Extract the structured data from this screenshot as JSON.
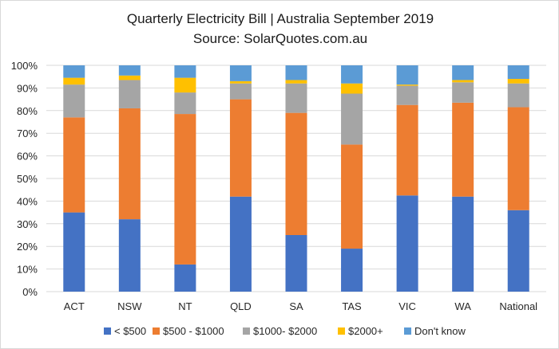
{
  "chart_data": {
    "type": "bar",
    "stacked": true,
    "title": "Quarterly Electricity Bill | Australia September 2019",
    "subtitle": "Source: SolarQuotes.com.au",
    "xlabel": "",
    "ylabel": "",
    "ylim": [
      0,
      100
    ],
    "y_unit": "%",
    "y_ticks": [
      "0%",
      "10%",
      "20%",
      "30%",
      "40%",
      "50%",
      "60%",
      "70%",
      "80%",
      "90%",
      "100%"
    ],
    "grid": true,
    "legend_position": "bottom",
    "categories": [
      "ACT",
      "NSW",
      "NT",
      "QLD",
      "SA",
      "TAS",
      "VIC",
      "WA",
      "National"
    ],
    "series": [
      {
        "name": "< $500",
        "color": "#4472C4",
        "values": [
          35,
          32,
          12,
          42,
          25,
          19,
          42.5,
          42,
          36
        ]
      },
      {
        "name": "$500 - $1000",
        "color": "#ED7D31",
        "values": [
          42,
          49,
          66.5,
          43,
          54,
          46,
          40,
          41.5,
          45.5
        ]
      },
      {
        "name": "$1000- $2000",
        "color": "#A5A5A5",
        "values": [
          14.5,
          12.5,
          9.5,
          7,
          13,
          22.5,
          8.5,
          9,
          10.5
        ]
      },
      {
        "name": "$2000+",
        "color": "#FFC000",
        "values": [
          3,
          2,
          6.5,
          1,
          1.5,
          4.5,
          0.5,
          1,
          2
        ]
      },
      {
        "name": "Don't know",
        "color": "#5B9BD5",
        "values": [
          5.5,
          4.5,
          5.5,
          7,
          6.5,
          8,
          8.5,
          6.5,
          6
        ]
      }
    ]
  }
}
